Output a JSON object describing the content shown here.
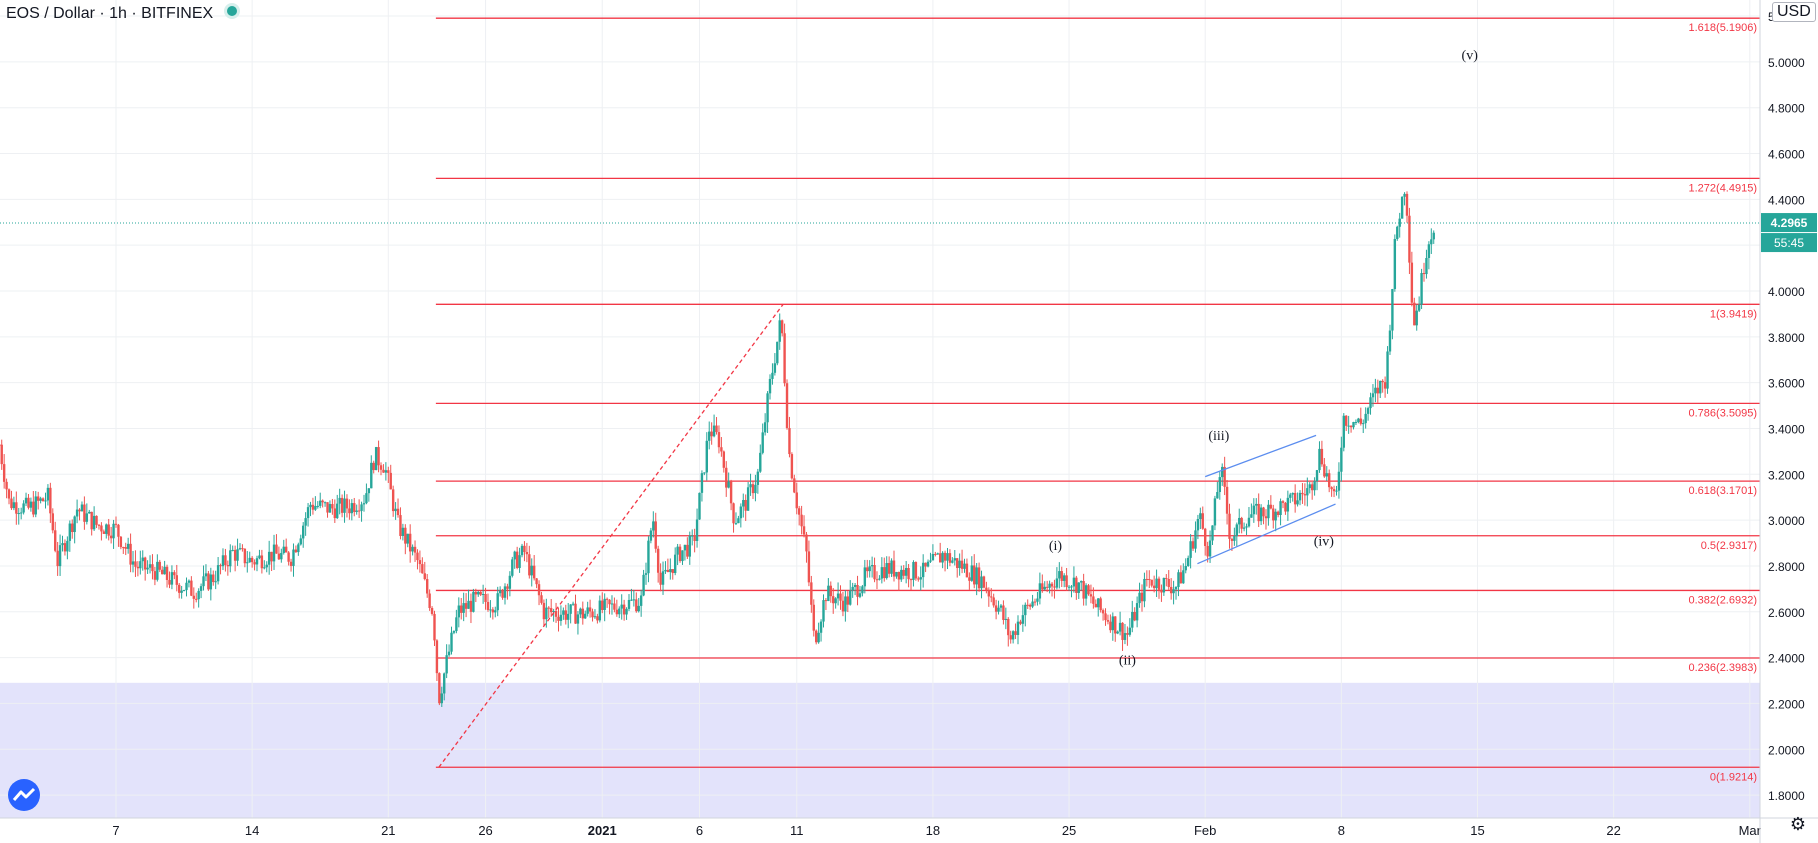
{
  "header": {
    "symbol": "EOS / Dollar",
    "interval": "1h",
    "exchange": "BITFINEX"
  },
  "currency_label": "USD",
  "last_price_tag": "4.2965",
  "countdown_tag": "55:45",
  "colors": {
    "fib_line": "#f23645",
    "up_candle": "#26a69a",
    "down_candle": "#ef5350",
    "channel": "#5b8def",
    "zone": "#e3e3fb",
    "accent": "#26a69a"
  },
  "chart_data": {
    "type": "candlestick",
    "title": "",
    "ylim": [
      1.7,
      5.27
    ],
    "y_ticks": [
      "1.8000",
      "2.0000",
      "2.2000",
      "2.4000",
      "2.6000",
      "2.8000",
      "3.0000",
      "3.2000",
      "3.4000",
      "3.6000",
      "3.8000",
      "4.0000",
      "4.2000",
      "4.4000",
      "4.6000",
      "4.8000",
      "5.0000",
      "5.2000"
    ],
    "x_ticks": [
      {
        "label": "7",
        "day": 7
      },
      {
        "label": "14",
        "day": 14
      },
      {
        "label": "21",
        "day": 21
      },
      {
        "label": "26",
        "day": 26
      },
      {
        "label": "2021",
        "day": 32
      },
      {
        "label": "6",
        "day": 37
      },
      {
        "label": "11",
        "day": 42
      },
      {
        "label": "18",
        "day": 49
      },
      {
        "label": "25",
        "day": 56
      },
      {
        "label": "Feb",
        "day": 63
      },
      {
        "label": "8",
        "day": 70
      },
      {
        "label": "15",
        "day": 77
      },
      {
        "label": "22",
        "day": 84
      },
      {
        "label": "Mar",
        "day": 91
      }
    ],
    "xlim": [
      1,
      92
    ],
    "grid": true,
    "fib_levels": [
      {
        "label": "1.618(5.1906)",
        "value": 5.1906
      },
      {
        "label": "1.272(4.4915)",
        "value": 4.4915
      },
      {
        "label": "1(3.9419)",
        "value": 3.9419
      },
      {
        "label": "0.786(3.5095)",
        "value": 3.5095
      },
      {
        "label": "0.618(3.1701)",
        "value": 3.1701
      },
      {
        "label": "0.5(2.9317)",
        "value": 2.9317
      },
      {
        "label": "0.382(2.6932)",
        "value": 2.6932
      },
      {
        "label": "0.236(2.3983)",
        "value": 2.3983
      },
      {
        "label": "0(1.9214)",
        "value": 1.9214
      }
    ],
    "fib_start_day": 23.6,
    "last_price": 4.2965,
    "shaded_zone_below": 2.29,
    "trend_line": {
      "from": {
        "day": 23.6,
        "price": 1.9214
      },
      "to": {
        "day": 41.3,
        "price": 3.9419
      }
    },
    "wave_labels": [
      {
        "label": "(i)",
        "day": 55.3,
        "price": 2.87
      },
      {
        "label": "(ii)",
        "day": 59.0,
        "price": 2.37
      },
      {
        "label": "(iii)",
        "day": 63.7,
        "price": 3.35
      },
      {
        "label": "(iv)",
        "day": 69.1,
        "price": 2.89
      },
      {
        "label": "(v)",
        "day": 76.6,
        "price": 5.01
      }
    ],
    "channel_lines": [
      {
        "from": {
          "day": 63.0,
          "price": 3.19
        },
        "to": {
          "day": 68.7,
          "price": 3.37
        }
      },
      {
        "from": {
          "day": 62.6,
          "price": 2.81
        },
        "to": {
          "day": 69.7,
          "price": 3.07
        }
      }
    ],
    "price_path": [
      {
        "day": 1.0,
        "price": 3.33
      },
      {
        "day": 1.5,
        "price": 3.08
      },
      {
        "day": 2.5,
        "price": 3.05
      },
      {
        "day": 3.5,
        "price": 3.1
      },
      {
        "day": 4.0,
        "price": 2.82
      },
      {
        "day": 5.0,
        "price": 3.05
      },
      {
        "day": 6.0,
        "price": 2.98
      },
      {
        "day": 7.0,
        "price": 2.96
      },
      {
        "day": 8.0,
        "price": 2.8
      },
      {
        "day": 9.0,
        "price": 2.78
      },
      {
        "day": 10.0,
        "price": 2.73
      },
      {
        "day": 11.0,
        "price": 2.69
      },
      {
        "day": 12.0,
        "price": 2.75
      },
      {
        "day": 13.0,
        "price": 2.86
      },
      {
        "day": 14.0,
        "price": 2.82
      },
      {
        "day": 15.0,
        "price": 2.85
      },
      {
        "day": 16.0,
        "price": 2.84
      },
      {
        "day": 17.0,
        "price": 3.07
      },
      {
        "day": 18.0,
        "price": 3.05
      },
      {
        "day": 19.0,
        "price": 3.06
      },
      {
        "day": 19.8,
        "price": 3.1
      },
      {
        "day": 20.3,
        "price": 3.28
      },
      {
        "day": 20.8,
        "price": 3.24
      },
      {
        "day": 21.5,
        "price": 2.98
      },
      {
        "day": 22.5,
        "price": 2.82
      },
      {
        "day": 23.3,
        "price": 2.6
      },
      {
        "day": 23.6,
        "price": 2.22
      },
      {
        "day": 24.0,
        "price": 2.38
      },
      {
        "day": 24.6,
        "price": 2.6
      },
      {
        "day": 25.5,
        "price": 2.65
      },
      {
        "day": 26.6,
        "price": 2.64
      },
      {
        "day": 27.5,
        "price": 2.82
      },
      {
        "day": 28.0,
        "price": 2.86
      },
      {
        "day": 29.0,
        "price": 2.6
      },
      {
        "day": 31.0,
        "price": 2.59
      },
      {
        "day": 32.5,
        "price": 2.62
      },
      {
        "day": 34.0,
        "price": 2.65
      },
      {
        "day": 34.6,
        "price": 3.02
      },
      {
        "day": 35.0,
        "price": 2.72
      },
      {
        "day": 36.0,
        "price": 2.86
      },
      {
        "day": 36.7,
        "price": 2.9
      },
      {
        "day": 37.5,
        "price": 3.4
      },
      {
        "day": 38.0,
        "price": 3.35
      },
      {
        "day": 38.8,
        "price": 3.0
      },
      {
        "day": 39.4,
        "price": 3.08
      },
      {
        "day": 40.0,
        "price": 3.2
      },
      {
        "day": 40.6,
        "price": 3.58
      },
      {
        "day": 41.2,
        "price": 3.88
      },
      {
        "day": 41.6,
        "price": 3.3
      },
      {
        "day": 42.0,
        "price": 3.08
      },
      {
        "day": 42.5,
        "price": 2.85
      },
      {
        "day": 42.9,
        "price": 2.47
      },
      {
        "day": 43.5,
        "price": 2.68
      },
      {
        "day": 44.5,
        "price": 2.64
      },
      {
        "day": 45.5,
        "price": 2.75
      },
      {
        "day": 46.5,
        "price": 2.79
      },
      {
        "day": 47.5,
        "price": 2.78
      },
      {
        "day": 48.5,
        "price": 2.77
      },
      {
        "day": 49.5,
        "price": 2.85
      },
      {
        "day": 50.5,
        "price": 2.8
      },
      {
        "day": 51.5,
        "price": 2.74
      },
      {
        "day": 52.5,
        "price": 2.6
      },
      {
        "day": 53.0,
        "price": 2.48
      },
      {
        "day": 53.5,
        "price": 2.58
      },
      {
        "day": 54.5,
        "price": 2.68
      },
      {
        "day": 55.5,
        "price": 2.76
      },
      {
        "day": 56.5,
        "price": 2.72
      },
      {
        "day": 57.3,
        "price": 2.63
      },
      {
        "day": 58.3,
        "price": 2.55
      },
      {
        "day": 59.0,
        "price": 2.5
      },
      {
        "day": 60.0,
        "price": 2.74
      },
      {
        "day": 61.5,
        "price": 2.71
      },
      {
        "day": 62.0,
        "price": 2.8
      },
      {
        "day": 62.7,
        "price": 3.02
      },
      {
        "day": 63.2,
        "price": 2.86
      },
      {
        "day": 63.8,
        "price": 3.24
      },
      {
        "day": 64.3,
        "price": 2.92
      },
      {
        "day": 65.2,
        "price": 3.02
      },
      {
        "day": 66.4,
        "price": 3.04
      },
      {
        "day": 67.5,
        "price": 3.08
      },
      {
        "day": 68.4,
        "price": 3.14
      },
      {
        "day": 68.9,
        "price": 3.3
      },
      {
        "day": 69.7,
        "price": 3.06
      },
      {
        "day": 70.1,
        "price": 3.45
      },
      {
        "day": 71.0,
        "price": 3.42
      },
      {
        "day": 71.8,
        "price": 3.56
      },
      {
        "day": 72.3,
        "price": 3.62
      },
      {
        "day": 72.8,
        "price": 4.25
      },
      {
        "day": 73.3,
        "price": 4.48
      },
      {
        "day": 73.7,
        "price": 3.85
      },
      {
        "day": 74.0,
        "price": 3.97
      },
      {
        "day": 74.4,
        "price": 4.2
      },
      {
        "day": 74.8,
        "price": 4.3
      }
    ]
  }
}
